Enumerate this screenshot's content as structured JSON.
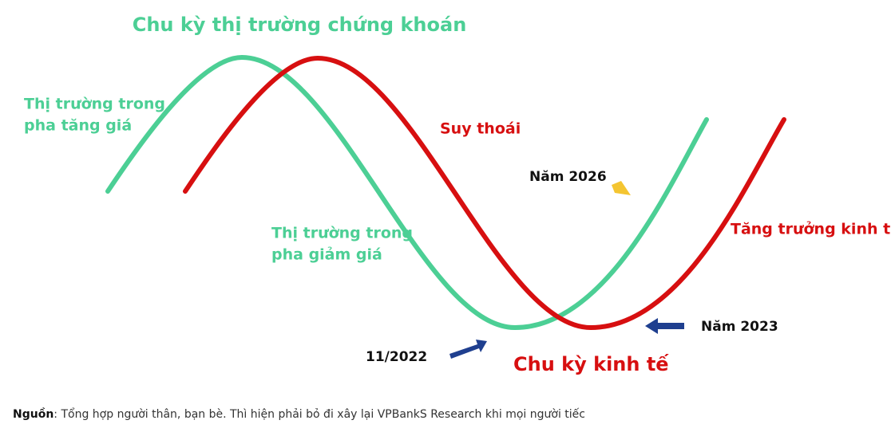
{
  "title": "Chu kỳ thị trường chứng khoán",
  "labels": {
    "bull_market": [
      "Thị trường trong",
      "pha tăng giá"
    ],
    "recession": "Suy thoái",
    "year_2026": "Năm 2026",
    "bear_market": [
      "Thị trường trong",
      "pha giảm giá"
    ],
    "growth": "Tăng trưởng kinh tế",
    "year_2023": "Năm 2023",
    "date_2022": "11/2022",
    "economic_cycle": "Chu kỳ kinh tế"
  },
  "source": {
    "label": "Nguồn",
    "text": ": Tổng hợp người thân, bạn bè. Thì hiện phải bỏ đi xây lại VPBankS Research khi mọi người tiếc"
  }
}
